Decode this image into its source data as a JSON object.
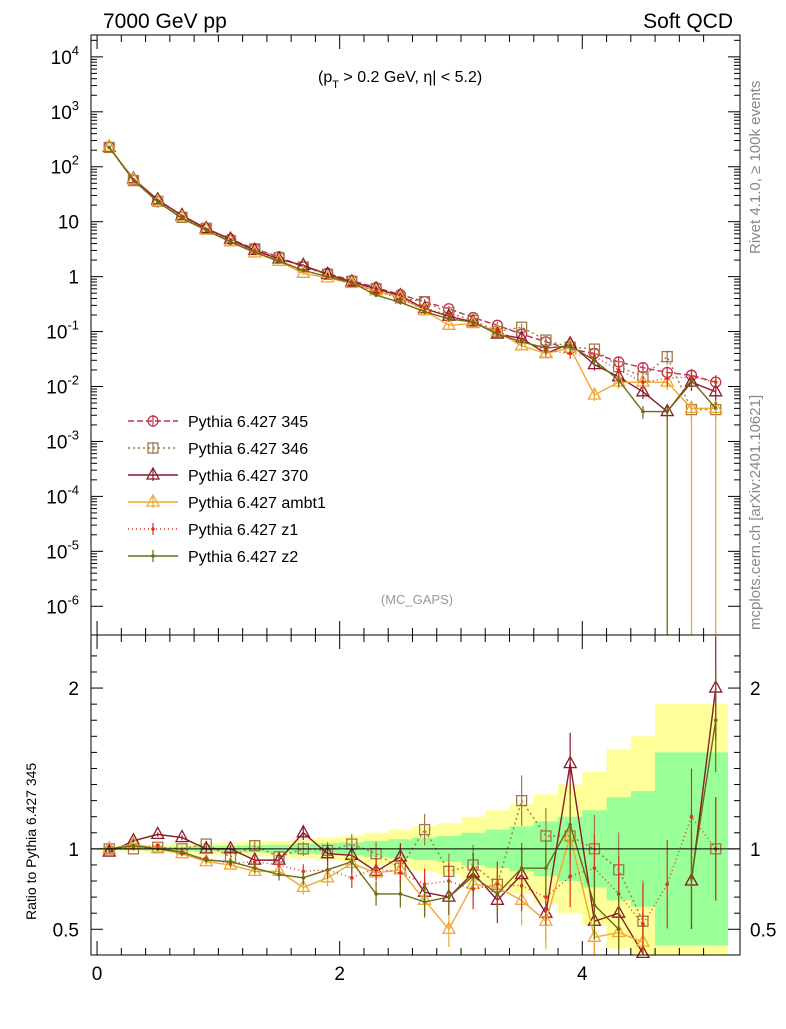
{
  "header": {
    "left": "7000 GeV pp",
    "right": "Soft QCD"
  },
  "side_labels": {
    "rivet": "Rivet 4.1.0, ≥ 100k events",
    "mcplots": "mcplots.cern.ch [arXiv:2401.10621]"
  },
  "watermark": "(MC_GAPS)",
  "cut_label": {
    "pt": "(p",
    "sub": "T",
    "rest": " > 0.2 GeV, η| < 5.2)"
  },
  "chart_data": [
    {
      "type": "line",
      "panel": "main",
      "yscale": "log",
      "xlim": [
        -0.05,
        5.3
      ],
      "ylim": [
        3e-07,
        25000
      ],
      "ytick_labels": [
        "10^4",
        "10^3",
        "10^2",
        "10",
        "1",
        "10^-1",
        "10^-2",
        "10^-3",
        "10^-4",
        "10^-5",
        "10^-6"
      ],
      "x": [
        0.1,
        0.3,
        0.5,
        0.7,
        0.9,
        1.1,
        1.3,
        1.5,
        1.7,
        1.9,
        2.1,
        2.3,
        2.5,
        2.7,
        2.9,
        3.1,
        3.3,
        3.5,
        3.7,
        3.9,
        4.1,
        4.3,
        4.5,
        4.7,
        4.9,
        5.1
      ],
      "legend": [
        "Pythia 6.427 345",
        "Pythia 6.427 346",
        "Pythia 6.427 370",
        "Pythia 6.427 ambt1",
        "Pythia 6.427 z1",
        "Pythia 6.427 z2"
      ],
      "series": [
        {
          "name": "Pythia 6.427 345",
          "color": "#c0304a",
          "dash": "6,3",
          "marker": "circle",
          "values": [
            230,
            57,
            23,
            12,
            7.5,
            4.8,
            3.2,
            2.3,
            1.5,
            1.15,
            0.85,
            0.63,
            0.47,
            0.35,
            0.26,
            0.18,
            0.13,
            0.09,
            0.065,
            0.048,
            0.04,
            0.028,
            0.022,
            0.018,
            0.016,
            0.012
          ]
        },
        {
          "name": "Pythia 6.427 346",
          "color": "#a0784a",
          "dash": "2,3",
          "marker": "square",
          "values": [
            225,
            56,
            23.5,
            12,
            7.6,
            4.5,
            3.2,
            2.2,
            1.5,
            1.1,
            0.82,
            0.6,
            0.41,
            0.35,
            0.22,
            0.16,
            0.1,
            0.12,
            0.07,
            0.052,
            0.048,
            0.023,
            0.015,
            0.035,
            0.0038,
            0.0038
          ]
        },
        {
          "name": "Pythia 6.427 370",
          "color": "#8b1a2b",
          "dash": "",
          "marker": "triangle",
          "values": [
            225,
            60,
            25,
            13,
            7.5,
            4.8,
            3.0,
            2.1,
            1.6,
            1.1,
            0.8,
            0.6,
            0.45,
            0.26,
            0.19,
            0.15,
            0.09,
            0.075,
            0.04,
            0.06,
            0.025,
            0.015,
            0.008,
            0.0035,
            0.012,
            0.008
          ]
        },
        {
          "name": "Pythia 6.427 ambt1",
          "color": "#f0a830",
          "dash": "",
          "marker": "triangle",
          "values": [
            230,
            58,
            23,
            12,
            7,
            4.3,
            2.7,
            1.9,
            1.15,
            0.95,
            0.75,
            0.55,
            0.42,
            0.24,
            0.13,
            0.14,
            0.1,
            0.055,
            0.04,
            0.05,
            0.007,
            0.012,
            0.012,
            0.012,
            0.004,
            0.004
          ]
        },
        {
          "name": "Pythia 6.427 z1",
          "color": "#e03020",
          "dash": "1,3",
          "marker": "dot",
          "values": [
            225,
            58,
            23,
            12,
            7.2,
            4.4,
            2.9,
            2.0,
            1.3,
            1.0,
            0.75,
            0.55,
            0.39,
            0.27,
            0.2,
            0.14,
            0.1,
            0.07,
            0.045,
            0.04,
            0.035,
            0.02,
            0.012,
            0.014,
            0.015,
            0.012
          ]
        },
        {
          "name": "Pythia 6.427 z2",
          "color": "#6b6b10",
          "dash": "",
          "marker": "dot",
          "values": [
            225,
            57,
            23,
            11.5,
            7,
            4.3,
            2.8,
            1.9,
            1.3,
            1.0,
            0.78,
            0.46,
            0.34,
            0.23,
            0.17,
            0.15,
            0.09,
            0.065,
            0.05,
            0.055,
            0.03,
            0.013,
            0.0035,
            0.0035,
            0.013,
            0.004
          ]
        }
      ]
    },
    {
      "type": "line",
      "panel": "ratio",
      "ylabel": "Ratio to Pythia 6.427 345",
      "xlim": [
        -0.05,
        5.3
      ],
      "ylim": [
        0.34,
        2.33
      ],
      "xtick_labels": [
        "0",
        "2",
        "4"
      ],
      "ytick_labels": [
        "0.5",
        "1",
        "2"
      ],
      "band_x": [
        0.0,
        0.2,
        0.4,
        0.6,
        0.8,
        1.0,
        1.2,
        1.4,
        1.6,
        1.8,
        2.0,
        2.2,
        2.4,
        2.6,
        2.8,
        3.0,
        3.2,
        3.4,
        3.6,
        3.8,
        4.0,
        4.2,
        4.4,
        4.6,
        4.8,
        5.0,
        5.2
      ],
      "band_yellow": [
        0.01,
        0.015,
        0.02,
        0.03,
        0.035,
        0.04,
        0.045,
        0.05,
        0.06,
        0.07,
        0.08,
        0.1,
        0.12,
        0.14,
        0.16,
        0.2,
        0.24,
        0.28,
        0.34,
        0.4,
        0.48,
        0.62,
        0.7,
        0.9,
        0.9,
        0.9
      ],
      "band_green": [
        0.005,
        0.008,
        0.01,
        0.015,
        0.018,
        0.02,
        0.022,
        0.025,
        0.03,
        0.035,
        0.04,
        0.05,
        0.06,
        0.07,
        0.08,
        0.1,
        0.12,
        0.14,
        0.17,
        0.2,
        0.24,
        0.32,
        0.36,
        0.6,
        0.6,
        0.6
      ],
      "series": [
        {
          "name": "Pythia 6.427 346",
          "values": [
            1.0,
            1.0,
            1.01,
            1.0,
            1.03,
            0.95,
            1.02,
            0.95,
            1.0,
            0.99,
            1.03,
            0.97,
            0.88,
            1.12,
            0.86,
            0.9,
            0.78,
            1.3,
            1.08,
            1.08,
            1.0,
            0.87,
            0.55,
            null,
            null,
            1.0
          ]
        },
        {
          "name": "Pythia 6.427 370",
          "values": [
            0.98,
            1.05,
            1.09,
            1.07,
            1.0,
            1.0,
            0.93,
            0.93,
            1.1,
            0.97,
            0.96,
            0.86,
            0.95,
            0.73,
            0.7,
            0.85,
            0.68,
            0.84,
            0.6,
            1.53,
            0.55,
            0.6,
            0.35,
            null,
            0.8,
            2.0
          ]
        },
        {
          "name": "Pythia 6.427 ambt1",
          "values": [
            1.0,
            1.03,
            1.0,
            0.97,
            0.92,
            0.9,
            0.86,
            0.86,
            0.76,
            0.82,
            0.91,
            0.85,
            0.87,
            0.68,
            0.5,
            0.78,
            0.76,
            0.68,
            0.55,
            1.08,
            0.45,
            0.48,
            0.42,
            null,
            null,
            null
          ]
        },
        {
          "name": "Pythia 6.427 z1",
          "values": [
            1.0,
            1.01,
            1.02,
            0.97,
            0.94,
            0.91,
            0.92,
            0.9,
            0.86,
            0.87,
            0.82,
            0.88,
            0.85,
            0.78,
            0.8,
            0.75,
            0.78,
            0.77,
            0.7,
            0.83,
            0.88,
            0.72,
            0.53,
            0.78,
            1.2,
            1.0
          ]
        },
        {
          "name": "Pythia 6.427 z2",
          "values": [
            1.0,
            1.02,
            1.0,
            0.98,
            0.93,
            0.92,
            0.88,
            0.84,
            0.82,
            0.87,
            0.92,
            0.72,
            0.72,
            0.67,
            0.7,
            0.83,
            0.72,
            0.88,
            0.88,
            1.15,
            0.65,
            0.5,
            null,
            null,
            0.82,
            1.8
          ]
        }
      ]
    }
  ]
}
